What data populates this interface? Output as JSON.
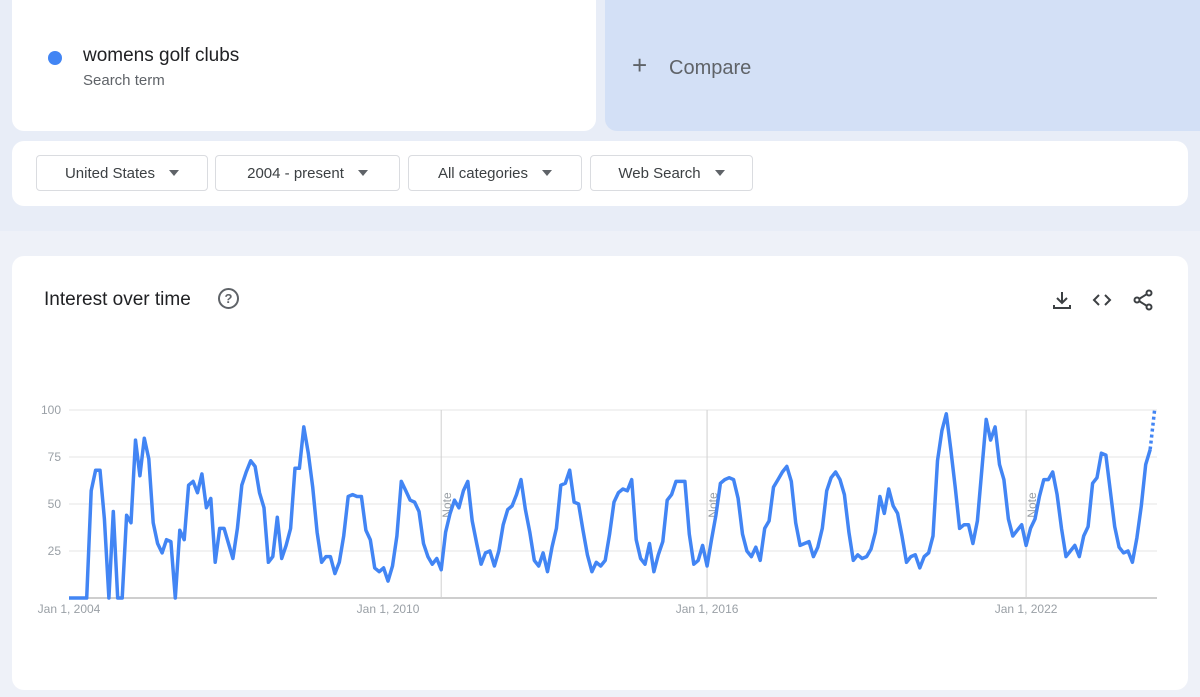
{
  "search_term": {
    "label": "womens golf clubs",
    "sublabel": "Search term",
    "color": "#4285f4"
  },
  "compare": {
    "label": "Compare",
    "icon": "plus-icon"
  },
  "filters": [
    {
      "label": "United States"
    },
    {
      "label": "2004 - present"
    },
    {
      "label": "All categories"
    },
    {
      "label": "Web Search"
    }
  ],
  "card": {
    "title": "Interest over time",
    "icons": [
      "help-icon",
      "download-icon",
      "embed-code-icon",
      "share-icon"
    ]
  },
  "chart_data": {
    "type": "line",
    "title": "Interest over time",
    "x_start": "2004-01",
    "x_interval": "month",
    "ylim": [
      0,
      100
    ],
    "yticks": [
      "100",
      "75",
      "50",
      "25"
    ],
    "xticks": [
      "Jan 1, 2004",
      "Jan 1, 2010",
      "Jan 1, 2016",
      "Jan 1, 2022"
    ],
    "grid": true,
    "notes": [
      {
        "date": "2011-01",
        "label": "Note"
      },
      {
        "date": "2016-01",
        "label": "Note"
      },
      {
        "date": "2022-01",
        "label": "Note"
      }
    ],
    "partial_last_point": true,
    "series": [
      {
        "name": "womens golf clubs",
        "color": "#4285f4",
        "values": [
          0,
          0,
          0,
          0,
          0,
          57,
          68,
          68,
          42,
          0,
          46,
          0,
          0,
          44,
          40,
          84,
          65,
          85,
          74,
          40,
          29,
          24,
          31,
          30,
          0,
          36,
          31,
          60,
          62,
          56,
          66,
          48,
          53,
          19,
          37,
          37,
          29,
          21,
          37,
          60,
          67,
          73,
          70,
          56,
          48,
          19,
          22,
          43,
          21,
          28,
          37,
          69,
          69,
          91,
          77,
          59,
          35,
          19,
          22,
          22,
          13,
          19,
          33,
          54,
          55,
          54,
          54,
          36,
          31,
          16,
          14,
          16,
          9,
          17,
          33,
          62,
          57,
          52,
          51,
          46,
          29,
          22,
          18,
          21,
          15,
          35,
          45,
          52,
          48,
          57,
          62,
          41,
          29,
          18,
          24,
          25,
          17,
          25,
          39,
          47,
          49,
          55,
          63,
          47,
          35,
          20,
          17,
          24,
          14,
          27,
          37,
          60,
          61,
          68,
          51,
          50,
          36,
          23,
          14,
          19,
          17,
          20,
          34,
          51,
          56,
          58,
          57,
          63,
          31,
          21,
          18,
          29,
          14,
          23,
          30,
          52,
          55,
          62,
          62,
          62,
          34,
          18,
          20,
          28,
          17,
          31,
          44,
          61,
          63,
          64,
          63,
          53,
          34,
          25,
          22,
          27,
          20,
          37,
          41,
          59,
          63,
          67,
          70,
          62,
          40,
          28,
          29,
          30,
          22,
          27,
          37,
          57,
          64,
          67,
          63,
          55,
          35,
          20,
          23,
          21,
          22,
          26,
          35,
          54,
          45,
          58,
          49,
          45,
          33,
          19,
          22,
          23,
          16,
          22,
          24,
          33,
          73,
          89,
          98,
          79,
          59,
          37,
          39,
          39,
          29,
          41,
          68,
          95,
          84,
          91,
          71,
          63,
          42,
          33,
          36,
          39,
          28,
          37,
          42,
          54,
          63,
          63,
          67,
          55,
          37,
          22,
          25,
          28,
          22,
          33,
          38,
          61,
          64,
          77,
          76,
          57,
          38,
          27,
          24,
          25,
          19,
          32,
          49,
          71,
          79,
          100
        ]
      }
    ]
  }
}
